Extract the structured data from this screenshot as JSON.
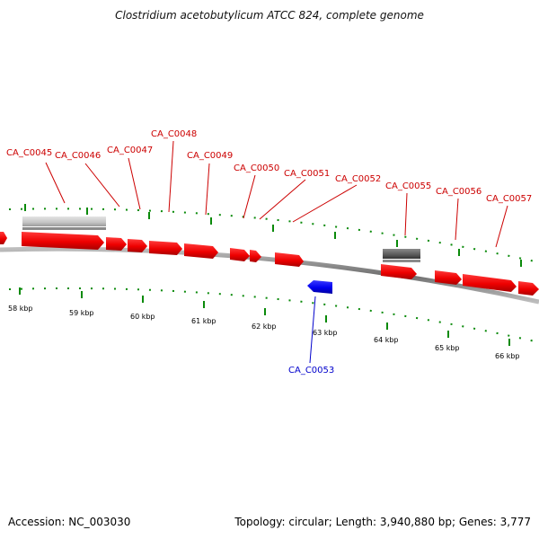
{
  "title": "Clostridium acetobutylicum ATCC 824, complete genome",
  "footer": {
    "accession": "Accession: NC_003030",
    "topology": "Topology: circular; Length: 3,940,880 bp; Genes: 3,777"
  },
  "colors": {
    "forward_gene": "#ff0000",
    "reverse_gene": "#0000ff",
    "forward_label": "#cc0000",
    "reverse_label": "#0000cc",
    "tick": "#0a8a0a",
    "backbone": "#8a8a8a",
    "light_feature": "#c8c8c8",
    "dark_feature": "#606060"
  },
  "scale": {
    "ticks": [
      "58 kbp",
      "59 kbp",
      "60 kbp",
      "61 kbp",
      "62 kbp",
      "63 kbp",
      "64 kbp",
      "65 kbp",
      "66 kbp"
    ]
  },
  "genes": {
    "forward_labels": [
      "CA_C0045",
      "CA_C0046",
      "CA_C0047",
      "CA_C0048",
      "CA_C0049",
      "CA_C0050",
      "CA_C0051",
      "CA_C0052",
      "CA_C0055",
      "CA_C0056",
      "CA_C0057"
    ],
    "reverse_labels": [
      "CA_C0053"
    ]
  }
}
